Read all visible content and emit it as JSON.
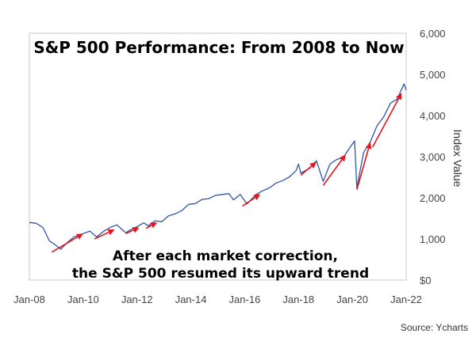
{
  "chart_data": {
    "type": "line",
    "title": "S&P 500 Performance: From 2008 to Now",
    "ylabel": "Index Value",
    "xlabel": "",
    "x_tick_labels": [
      "Jan-08",
      "Jan-10",
      "Jan-12",
      "Jan-14",
      "Jan-16",
      "Jan-18",
      "Jan-20",
      "Jan-22"
    ],
    "y_tick_labels": [
      "$0",
      "1,000",
      "2,000",
      "3,000",
      "4,000",
      "5,000",
      "6,000"
    ],
    "xlim": [
      "2008-01",
      "2022-01"
    ],
    "ylim": [
      0,
      6000
    ],
    "grid": false,
    "axis_side": "right",
    "series_color": "#2e56a6",
    "arrow_color": "#e8141c",
    "series": [
      {
        "x": [
          "2008-01",
          "2008-04",
          "2008-07",
          "2008-10",
          "2008-12",
          "2009-03",
          "2009-06",
          "2009-09",
          "2009-12",
          "2010-04",
          "2010-07",
          "2010-10",
          "2011-01",
          "2011-04",
          "2011-08",
          "2011-10",
          "2012-01",
          "2012-04",
          "2012-06",
          "2012-09",
          "2012-12",
          "2013-03",
          "2013-06",
          "2013-09",
          "2013-12",
          "2014-03",
          "2014-06",
          "2014-09",
          "2014-12",
          "2015-03",
          "2015-06",
          "2015-08",
          "2015-11",
          "2016-02",
          "2016-06",
          "2016-09",
          "2016-12",
          "2017-03",
          "2017-06",
          "2017-09",
          "2017-12",
          "2018-01",
          "2018-02",
          "2018-06",
          "2018-09",
          "2018-12",
          "2019-03",
          "2019-06",
          "2019-09",
          "2019-12",
          "2020-02",
          "2020-03",
          "2020-06",
          "2020-09",
          "2020-12",
          "2021-03",
          "2021-06",
          "2021-09",
          "2021-12",
          "2022-01"
        ],
        "y": [
          1400,
          1380,
          1280,
          950,
          880,
          750,
          920,
          1050,
          1110,
          1190,
          1050,
          1180,
          1280,
          1340,
          1150,
          1220,
          1300,
          1390,
          1320,
          1440,
          1420,
          1560,
          1610,
          1690,
          1840,
          1860,
          1960,
          1980,
          2060,
          2080,
          2100,
          1950,
          2080,
          1850,
          2080,
          2170,
          2240,
          2360,
          2420,
          2510,
          2670,
          2820,
          2600,
          2720,
          2900,
          2400,
          2820,
          2930,
          2980,
          3230,
          3380,
          2240,
          3100,
          3360,
          3750,
          3970,
          4300,
          4400,
          4770,
          4620
        ]
      }
    ],
    "annotation": [
      "After each market correction,",
      "the S&P 500 resumed its upward trend"
    ],
    "source": "Source: Ycharts",
    "arrows": [
      {
        "from": [
          "2008-11",
          680
        ],
        "to": [
          "2010-01",
          1130
        ]
      },
      {
        "from": [
          "2010-06",
          1000
        ],
        "to": [
          "2011-03",
          1230
        ]
      },
      {
        "from": [
          "2011-08",
          1130
        ],
        "to": [
          "2012-02",
          1280
        ]
      },
      {
        "from": [
          "2012-05",
          1260
        ],
        "to": [
          "2012-10",
          1400
        ]
      },
      {
        "from": [
          "2015-12",
          1800
        ],
        "to": [
          "2016-08",
          2090
        ]
      },
      {
        "from": [
          "2018-02",
          2550
        ],
        "to": [
          "2018-09",
          2870
        ]
      },
      {
        "from": [
          "2018-12",
          2300
        ],
        "to": [
          "2019-10",
          3050
        ]
      },
      {
        "from": [
          "2020-03",
          2200
        ],
        "to": [
          "2020-09",
          3350
        ]
      },
      {
        "from": [
          "2020-10",
          3230
        ],
        "to": [
          "2021-11",
          4550
        ]
      }
    ]
  }
}
